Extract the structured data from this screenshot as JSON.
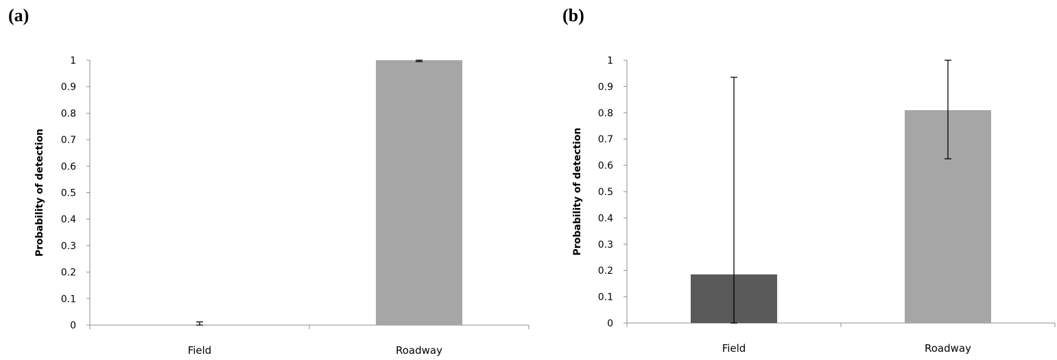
{
  "chart_data": [
    {
      "panel": "(a)",
      "type": "bar",
      "categories": [
        "Field",
        "Roadway"
      ],
      "values": [
        0.0,
        1.0
      ],
      "error_high": [
        0.012,
        1.0
      ],
      "error_low": [
        0.0,
        0.995
      ],
      "colors": [
        "#595959",
        "#a6a6a6"
      ],
      "ylabel": "Probability of detection",
      "ylim": [
        0,
        1
      ],
      "yticks": [
        "0",
        "0.1",
        "0.2",
        "0.3",
        "0.4",
        "0.5",
        "0.6",
        "0.7",
        "0.8",
        "0.9",
        "1"
      ],
      "grid": false,
      "legend": "none"
    },
    {
      "panel": "(b)",
      "type": "bar",
      "categories": [
        "Field",
        "Roadway"
      ],
      "values": [
        0.185,
        0.81
      ],
      "error_high": [
        0.935,
        1.0
      ],
      "error_low": [
        0.0,
        0.625
      ],
      "colors": [
        "#595959",
        "#a6a6a6"
      ],
      "ylabel": "Probability of detection",
      "ylim": [
        0,
        1
      ],
      "yticks": [
        "0",
        "0.1",
        "0.2",
        "0.3",
        "0.4",
        "0.5",
        "0.6",
        "0.7",
        "0.8",
        "0.9",
        "1"
      ],
      "grid": false,
      "legend": "none"
    }
  ]
}
